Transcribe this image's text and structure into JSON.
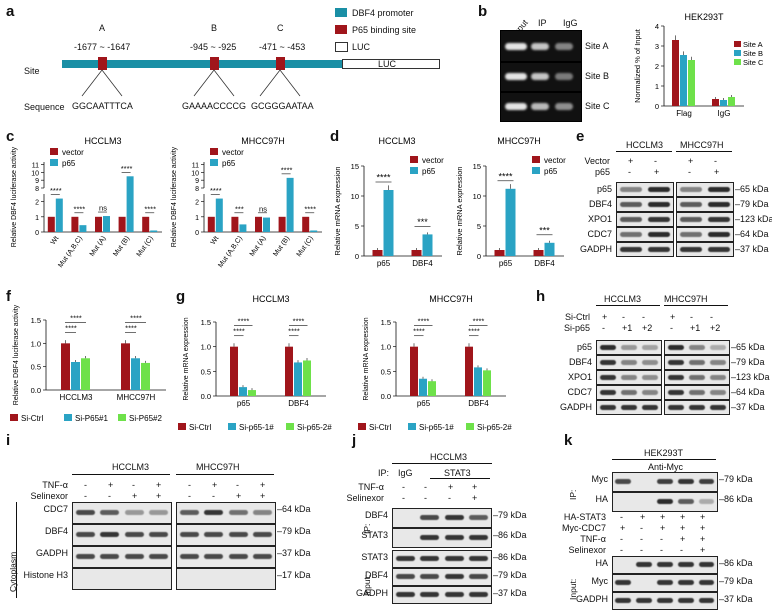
{
  "colors": {
    "red": "#a0151b",
    "teal": "#2aa3c4",
    "green": "#6ee14a",
    "promoter": "#1a8fa5"
  },
  "panels": {
    "a": "a",
    "b": "b",
    "c": "c",
    "d": "d",
    "e": "e",
    "f": "f",
    "g": "g",
    "h": "h",
    "i": "i",
    "j": "j",
    "k": "k"
  },
  "a": {
    "legend": [
      "DBF4 promoter",
      "P65 binding site",
      "LUC"
    ],
    "site_label": "Site",
    "sequence_label": "Sequence",
    "sites": [
      {
        "name": "A",
        "range": "-1677 ~ -1647",
        "seq": "GGCAATTTCA"
      },
      {
        "name": "B",
        "range": "-945 ~ -925",
        "seq": "GAAAACCCCG"
      },
      {
        "name": "C",
        "range": "-471 ~ -453",
        "seq": "GCGGGAATAA"
      }
    ],
    "luc": "LUC"
  },
  "b": {
    "lanes": [
      "Input",
      "IP",
      "IgG"
    ],
    "rows": [
      "Site A",
      "Site B",
      "Site C"
    ],
    "chart_data": {
      "type": "bar",
      "title": "HEK293T",
      "ylabel": "Normalized % of Input",
      "categories": [
        "Flag",
        "IgG"
      ],
      "ylim": [
        0,
        4
      ],
      "yticks": [
        "0",
        "1",
        "2",
        "3",
        "4"
      ],
      "series": [
        {
          "name": "Site A",
          "values": [
            3.3,
            0.35
          ]
        },
        {
          "name": "Site B",
          "values": [
            2.55,
            0.3
          ]
        },
        {
          "name": "Site C",
          "values": [
            2.3,
            0.45
          ]
        }
      ]
    }
  },
  "c": {
    "ylabel": "Relative DBF4 luciferase activity",
    "categories": [
      "Wt",
      "Mut (A,B,C)",
      "Mut (A)",
      "Mut (B)",
      "Mut (C)"
    ],
    "legend": [
      "vector",
      "p65"
    ],
    "yticks_low": [
      "0",
      "1",
      "2"
    ],
    "yticks_high": [
      "8",
      "9",
      "10",
      "11"
    ],
    "charts": [
      {
        "title": "HCCLM3",
        "sig": [
          "****",
          "****",
          "ns",
          "****",
          "****"
        ],
        "type": "bar",
        "series": [
          {
            "name": "vector",
            "values": [
              1.0,
              1.0,
              1.0,
              1.0,
              1.0
            ]
          },
          {
            "name": "p65",
            "values": [
              2.2,
              0.45,
              1.05,
              9.5,
              0.1
            ]
          }
        ]
      },
      {
        "title": "MHCC97H",
        "sig": [
          "****",
          "***",
          "ns",
          "****",
          "****"
        ],
        "type": "bar",
        "series": [
          {
            "name": "vector",
            "values": [
              1.0,
              1.0,
              1.0,
              1.0,
              1.0
            ]
          },
          {
            "name": "p65",
            "values": [
              2.2,
              0.5,
              0.95,
              9.3,
              0.1
            ]
          }
        ]
      }
    ]
  },
  "d": {
    "ylabel": "Relative mRNA expression",
    "legend": [
      "vector",
      "p65"
    ],
    "categories": [
      "p65",
      "DBF4"
    ],
    "charts": [
      {
        "title": "HCCLM3",
        "yticks": [
          "0",
          "5",
          "10",
          "15"
        ],
        "ylim": [
          0,
          15
        ],
        "sig": [
          "****",
          "***"
        ],
        "type": "bar",
        "series": [
          {
            "name": "vector",
            "values": [
              1,
              1
            ]
          },
          {
            "name": "p65",
            "values": [
              11,
              3.6
            ]
          }
        ]
      },
      {
        "title": "MHCC97H",
        "yticks": [
          "0",
          "5",
          "10",
          "15"
        ],
        "ylim": [
          0,
          15
        ],
        "sig": [
          "****",
          "***"
        ],
        "type": "bar",
        "series": [
          {
            "name": "vector",
            "values": [
              1,
              1
            ]
          },
          {
            "name": "p65",
            "values": [
              11.2,
              2.2
            ]
          }
        ]
      }
    ]
  },
  "e": {
    "cells": [
      "HCCLM3",
      "MHCC97H"
    ],
    "conds": [
      {
        "name": "Vector",
        "marks": [
          "+",
          "-",
          "+",
          "-"
        ]
      },
      {
        "name": "p65",
        "marks": [
          "-",
          "+",
          "-",
          "+"
        ]
      }
    ],
    "rows": [
      "p65",
      "DBF4",
      "XPO1",
      "CDC7",
      "GADPH"
    ],
    "kda": [
      "65 kDa",
      "79 kDa",
      "123 kDa",
      "64 kDa",
      "37 kDa"
    ]
  },
  "f": {
    "ylabel": "Relative DBF4 luciferase activity",
    "chart_data": {
      "type": "bar",
      "categories": [
        "HCCLM3",
        "MHCC97H"
      ],
      "ylim": [
        0,
        1.5
      ],
      "yticks": [
        "0.0",
        "0.5",
        "1.0",
        "1.5"
      ],
      "series": [
        {
          "name": "Si-Ctrl",
          "values": [
            1.0,
            1.0
          ]
        },
        {
          "name": "Si-P65#1",
          "values": [
            0.6,
            0.68
          ]
        },
        {
          "name": "Si-P65#2",
          "values": [
            0.68,
            0.58
          ]
        }
      ]
    },
    "sig": [
      "****",
      "****",
      "****",
      "****"
    ]
  },
  "g": {
    "ylabel": "Relative mRNA expression",
    "categories": [
      "p65",
      "DBF4"
    ],
    "legend": [
      "Si-Ctrl",
      "Si-p65-1#",
      "Si-p65-2#"
    ],
    "yticks": [
      "0.0",
      "0.5",
      "1.0",
      "1.5"
    ],
    "ylim": [
      0,
      1.5
    ],
    "charts": [
      {
        "title": "HCCLM3",
        "sig": [
          "****",
          "****",
          "****",
          "****"
        ],
        "type": "bar",
        "series": [
          {
            "name": "Si-Ctrl",
            "values": [
              1.0,
              1.0
            ]
          },
          {
            "name": "Si-p65-1#",
            "values": [
              0.18,
              0.68
            ]
          },
          {
            "name": "Si-p65-2#",
            "values": [
              0.12,
              0.72
            ]
          }
        ]
      },
      {
        "title": "MHCC97H",
        "sig": [
          "****",
          "****",
          "****",
          "****"
        ],
        "type": "bar",
        "series": [
          {
            "name": "Si-Ctrl",
            "values": [
              1.0,
              1.0
            ]
          },
          {
            "name": "Si-p65-1#",
            "values": [
              0.35,
              0.58
            ]
          },
          {
            "name": "Si-p65-2#",
            "values": [
              0.3,
              0.52
            ]
          }
        ]
      }
    ]
  },
  "h": {
    "cells": [
      "HCCLM3",
      "MHCC97H"
    ],
    "conds": [
      {
        "name": "Si-Ctrl",
        "marks": [
          "+",
          "-",
          "-",
          "+",
          "-",
          "-"
        ]
      },
      {
        "name": "Si-p65",
        "marks": [
          "-",
          "+1",
          "+2",
          "-",
          "+1",
          "+2"
        ]
      }
    ],
    "rows": [
      "p65",
      "DBF4",
      "XPO1",
      "CDC7",
      "GADPH"
    ],
    "kda": [
      "65 kDa",
      "79 kDa",
      "123 kDa",
      "64 kDa",
      "37 kDa"
    ]
  },
  "i": {
    "cells": [
      "HCCLM3",
      "MHCC97H"
    ],
    "conds": [
      {
        "name": "TNF-α",
        "marks": [
          "-",
          "+",
          "-",
          "+",
          "-",
          "+",
          "-",
          "+"
        ]
      },
      {
        "name": "Selinexor",
        "marks": [
          "-",
          "-",
          "+",
          "+",
          "-",
          "-",
          "+",
          "+"
        ]
      }
    ],
    "group": "Cytoplasm",
    "rows": [
      "CDC7",
      "DBF4",
      "GADPH",
      "Histone H3"
    ],
    "kda": [
      "64 kDa",
      "79 kDa",
      "37 kDa",
      "17 kDa"
    ]
  },
  "j": {
    "cell": "HCCLM3",
    "ip_label": "IP:",
    "igg": "IgG",
    "stat3": "STAT3",
    "conds": [
      {
        "name": "TNF-α",
        "marks": [
          "-",
          "-",
          "+",
          "+"
        ]
      },
      {
        "name": "Selinexor",
        "marks": [
          "-",
          "-",
          "-",
          "+"
        ]
      }
    ],
    "ip": "IP:",
    "input": "Input:",
    "ip_rows": [
      "DBF4",
      "STAT3"
    ],
    "input_rows": [
      "STAT3",
      "DBF4",
      "GADPH"
    ],
    "ip_kda": [
      "79 kDa",
      "86 kDa"
    ],
    "input_kda": [
      "86 kDa",
      "79 kDa",
      "37 kDa"
    ]
  },
  "k": {
    "cell": "HEK293T",
    "anti": "Anti-Myc",
    "ip": "IP:",
    "input": "Input:",
    "ip_rows": [
      "Myc",
      "HA"
    ],
    "ip_kda": [
      "79 kDa",
      "86 kDa"
    ],
    "conds": [
      {
        "name": "HA-STAT3",
        "marks": [
          "-",
          "+",
          "+",
          "+",
          "+"
        ]
      },
      {
        "name": "Myc-CDC7",
        "marks": [
          "+",
          "-",
          "+",
          "+",
          "+"
        ]
      },
      {
        "name": "TNF-α",
        "marks": [
          "-",
          "-",
          "-",
          "+",
          "+"
        ]
      },
      {
        "name": "Selinexor",
        "marks": [
          "-",
          "-",
          "-",
          "-",
          "+"
        ]
      }
    ],
    "input_rows": [
      "HA",
      "Myc",
      "GADPH"
    ],
    "input_kda": [
      "86 kDa",
      "79 kDa",
      "37 kDa"
    ]
  }
}
